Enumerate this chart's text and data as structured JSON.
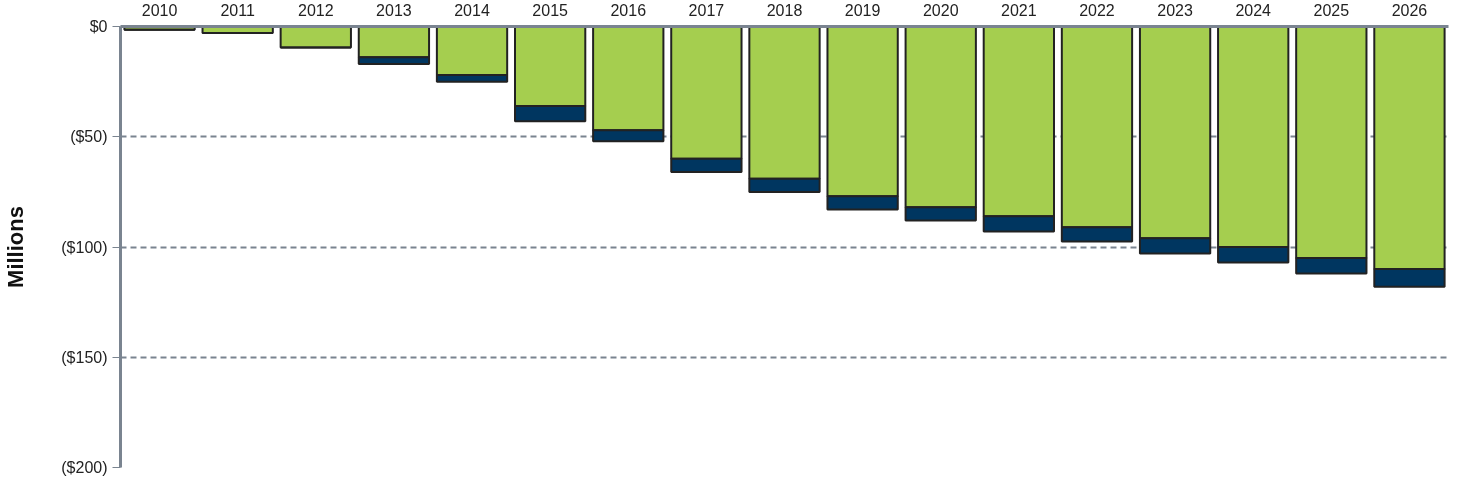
{
  "chart_data": {
    "type": "bar",
    "stacked": true,
    "ylabel": "Millions",
    "categories": [
      "2010",
      "2011",
      "2012",
      "2013",
      "2014",
      "2015",
      "2016",
      "2017",
      "2018",
      "2019",
      "2020",
      "2021",
      "2022",
      "2023",
      "2024",
      "2025",
      "2026"
    ],
    "series": [
      {
        "color": "#a5ce4f",
        "values": [
          -1.5,
          -3,
          -9.5,
          -14,
          -22,
          -36,
          -47,
          -60,
          -69,
          -77,
          -82,
          -86,
          -91,
          -96,
          -100,
          -105,
          -110
        ]
      },
      {
        "color": "#003660",
        "values": [
          0,
          0,
          0,
          -3,
          -3,
          -7,
          -5,
          -6,
          -6,
          -6,
          -6,
          -7,
          -6.5,
          -7,
          -7,
          -7,
          -8
        ]
      }
    ],
    "ylim": [
      -200,
      0
    ],
    "yticks": [
      {
        "value": 0,
        "label": "$0"
      },
      {
        "value": -50,
        "label": "($50)"
      },
      {
        "value": -100,
        "label": "($100)"
      },
      {
        "value": -150,
        "label": "($150)"
      },
      {
        "value": -200,
        "label": "($200)"
      }
    ],
    "grid": "y"
  }
}
